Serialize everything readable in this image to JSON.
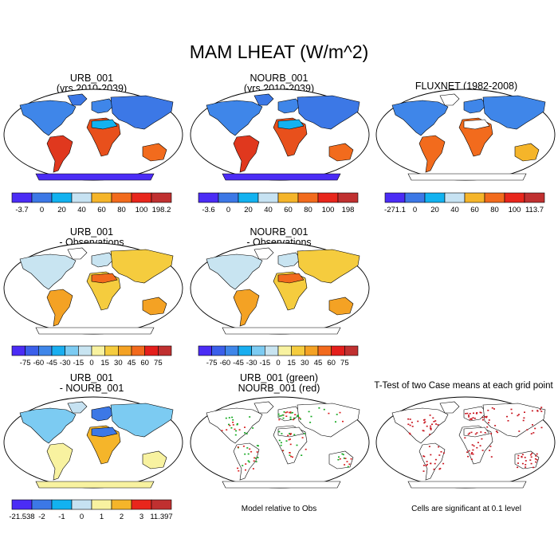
{
  "title": "MAM LHEAT (W/m^2)",
  "panels": {
    "p1": {
      "title1": "URB_001",
      "title2": "(yrs 2010-2039)"
    },
    "p2": {
      "title1": "NOURB_001",
      "title2": "(yrs 2010-2039)"
    },
    "p3": {
      "title1": "FLUXNET (1982-2008)"
    },
    "p4": {
      "title1": "URB_001",
      "title2": "- Observations"
    },
    "p5": {
      "title1": "NOURB_001",
      "title2": "- Observations"
    },
    "p7": {
      "title1": "URB_001",
      "title2": "- NOURB_001"
    },
    "p8": {
      "title1": "URB_001 (green)",
      "title2": "NOURB_001 (red)",
      "note": "Model relative to Obs"
    },
    "p9": {
      "title1": "T-Test of two Case means at each grid point",
      "note": "Cells are significant at 0.1 level"
    }
  },
  "colorbars": {
    "cb1": {
      "labels": [
        "-3.7",
        "0",
        "20",
        "40",
        "60",
        "80",
        "100",
        "198.2"
      ],
      "colors": [
        "#4b2cf5",
        "#3c78e6",
        "#12b2f0",
        "#c6e2f2",
        "#f5b52a",
        "#f26b1d",
        "#e8261c",
        "#c03030"
      ]
    },
    "cb2": {
      "labels": [
        "-3.6",
        "0",
        "20",
        "40",
        "60",
        "80",
        "100",
        "198"
      ],
      "colors": [
        "#4b2cf5",
        "#3c78e6",
        "#12b2f0",
        "#c6e2f2",
        "#f5b52a",
        "#f26b1d",
        "#e8261c",
        "#c03030"
      ]
    },
    "cb3": {
      "labels": [
        "-271.1",
        "0",
        "20",
        "40",
        "60",
        "80",
        "100",
        "113.7"
      ],
      "colors": [
        "#4b2cf5",
        "#3c78e6",
        "#12b2f0",
        "#c6e2f2",
        "#f5b52a",
        "#f26b1d",
        "#e8261c",
        "#c03030"
      ]
    },
    "cb4": {
      "labels": [
        "-75",
        "-60",
        "-45",
        "-30",
        "-15",
        "0",
        "15",
        "30",
        "45",
        "60",
        "75"
      ],
      "colors": [
        "#4b2cf5",
        "#3b5fea",
        "#3f86e9",
        "#19aef0",
        "#7ccbf2",
        "#c8e4f1",
        "#f8f2a0",
        "#f5cc3e",
        "#f4a224",
        "#f26a1d",
        "#e41f1c",
        "#c03030"
      ]
    },
    "cb5": {
      "labels": [
        "-75",
        "-60",
        "-45",
        "-30",
        "-15",
        "0",
        "15",
        "30",
        "45",
        "60",
        "75"
      ],
      "colors": [
        "#4b2cf5",
        "#3b5fea",
        "#3f86e9",
        "#19aef0",
        "#7ccbf2",
        "#c8e4f1",
        "#f8f2a0",
        "#f5cc3e",
        "#f4a224",
        "#f26a1d",
        "#e41f1c",
        "#c03030"
      ]
    },
    "cb7": {
      "labels": [
        "-21.538",
        "-2",
        "-1",
        "0",
        "1",
        "2",
        "3",
        "11.397"
      ],
      "colors": [
        "#4b2cf5",
        "#3c78e6",
        "#12b2f0",
        "#c6e2f2",
        "#f8f2a0",
        "#f5b52a",
        "#e8261c",
        "#c03030"
      ]
    }
  },
  "fills": {
    "m1": {
      "northAmerica": "#3f86e9",
      "southAmerica": "#e0381e",
      "africa": "#e8501c",
      "europe": "#3f86e9",
      "asia": "#3c78e6",
      "australia": "#f26b1d",
      "greenland": "#3c78e6",
      "antarctica": "#4b2cf5",
      "sahara": "#12b2f0"
    },
    "m2": {
      "northAmerica": "#3f86e9",
      "southAmerica": "#e0381e",
      "africa": "#e8501c",
      "europe": "#3f86e9",
      "asia": "#3c78e6",
      "australia": "#f26b1d",
      "greenland": "#3c78e6",
      "antarctica": "#4b2cf5",
      "sahara": "#12b2f0"
    },
    "m3": {
      "northAmerica": "#3f86e9",
      "southAmerica": "#f26b1d",
      "africa": "#f26b1d",
      "europe": "#3f86e9",
      "asia": "#3f86e9",
      "australia": "#f5b52a",
      "greenland": "#ffffff",
      "antarctica": "#ffffff",
      "sahara": "#ffffff"
    },
    "m4": {
      "northAmerica": "#c8e4f1",
      "southAmerica": "#f4a224",
      "africa": "#f5cc3e",
      "europe": "#c8e4f1",
      "asia": "#f5cc3e",
      "australia": "#f4a224",
      "greenland": "#ffffff",
      "antarctica": "#ffffff",
      "sahara": "#f26a1d"
    },
    "m5": {
      "northAmerica": "#c8e4f1",
      "southAmerica": "#f4a224",
      "africa": "#f5cc3e",
      "europe": "#c8e4f1",
      "asia": "#f5cc3e",
      "australia": "#f4a224",
      "greenland": "#ffffff",
      "antarctica": "#ffffff",
      "sahara": "#f26a1d"
    },
    "m7": {
      "northAmerica": "#7ccbf2",
      "southAmerica": "#f8f2a0",
      "africa": "#f5b52a",
      "europe": "#3c78e6",
      "asia": "#7ccbf2",
      "australia": "#f8f2a0",
      "greenland": "#c6e2f2",
      "antarctica": "#f8f2a0",
      "sahara": "#3c78e6"
    }
  }
}
